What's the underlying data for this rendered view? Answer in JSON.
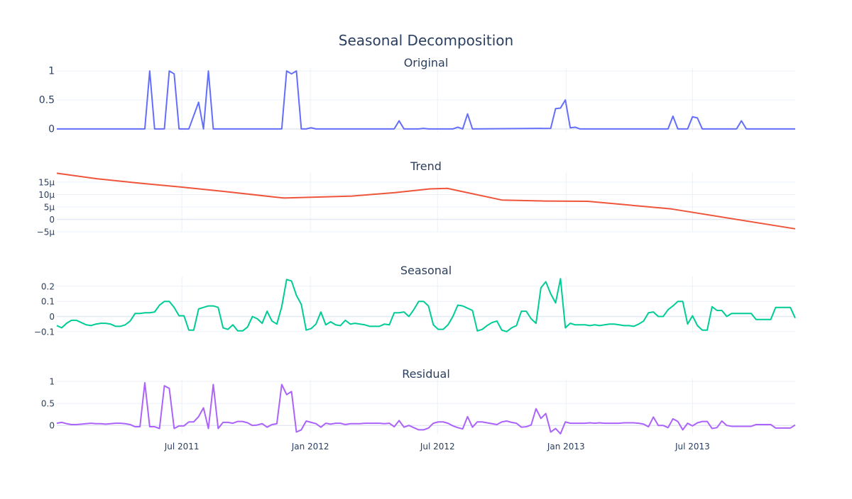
{
  "colors": {
    "original": "#636efa",
    "trend": "#EF553B",
    "seasonal": "#00cc96",
    "residual": "#ab63fa",
    "grid": "#ebf0f8",
    "zero": "#e4e8f3",
    "text": "#2a3f5f"
  },
  "chart_data": {
    "type": "line",
    "title": "Seasonal Decomposition",
    "x_axis": {
      "range": [
        "2011-01-03",
        "2013-11-25"
      ],
      "tick_values": [
        "2011-07-01",
        "2012-01-01",
        "2012-07-01",
        "2013-01-01",
        "2013-07-01"
      ],
      "tick_labels": [
        "Jul 2011",
        "Jan 2012",
        "Jul 2012",
        "Jan 2013",
        "Jul 2013"
      ]
    },
    "panels": [
      {
        "key": "original",
        "title": "Original",
        "ylim": [
          -0.05,
          1.05
        ],
        "ytick_values": [
          0,
          0.5,
          1
        ],
        "ytick_labels": [
          "0",
          "0.5",
          "1"
        ],
        "grid": true,
        "series": {
          "x": [
            "2011-01-03",
            "2011-05-09",
            "2011-05-16",
            "2011-05-23",
            "2011-06-06",
            "2011-06-13",
            "2011-06-20",
            "2011-06-27",
            "2011-07-11",
            "2011-07-25",
            "2011-08-01",
            "2011-08-08",
            "2011-08-15",
            "2011-08-22",
            "2011-11-21",
            "2011-11-28",
            "2011-12-05",
            "2011-12-12",
            "2011-12-19",
            "2011-12-26",
            "2012-01-02",
            "2012-01-09",
            "2012-01-16",
            "2012-04-30",
            "2012-05-07",
            "2012-05-14",
            "2012-06-04",
            "2012-06-11",
            "2012-06-18",
            "2012-07-23",
            "2012-07-30",
            "2012-08-06",
            "2012-08-13",
            "2012-08-20",
            "2012-12-10",
            "2012-12-17",
            "2012-12-24",
            "2012-12-31",
            "2013-01-07",
            "2013-01-14",
            "2013-01-21",
            "2013-05-27",
            "2013-06-03",
            "2013-06-10",
            "2013-06-24",
            "2013-07-01",
            "2013-07-08",
            "2013-07-15",
            "2013-09-02",
            "2013-09-09",
            "2013-09-16",
            "2013-11-25"
          ],
          "y": [
            0,
            0,
            1,
            0,
            0,
            1,
            0.95,
            0,
            0,
            0.46,
            0,
            1,
            0,
            0,
            0,
            1,
            0.95,
            1,
            0,
            0,
            0.02,
            0,
            0,
            0,
            0.14,
            0,
            0,
            0.01,
            0,
            0,
            0.03,
            0,
            0.26,
            0,
            0.01,
            0.35,
            0.36,
            0.5,
            0.02,
            0.03,
            0,
            0,
            0.22,
            0,
            0,
            0.21,
            0.19,
            0,
            0,
            0.14,
            0,
            0
          ]
        }
      },
      {
        "key": "trend",
        "title": "Trend",
        "ylim": [
          -5e-06,
          1.9e-05
        ],
        "ytick_values": [
          -5e-06,
          0,
          5e-06,
          1e-05,
          1.5e-05
        ],
        "ytick_labels": [
          "−5μ",
          "0",
          "5μ",
          "10μ",
          "15μ"
        ],
        "grid": true,
        "series": {
          "x": [
            "2011-01-03",
            "2011-03-01",
            "2011-05-01",
            "2011-07-01",
            "2011-09-01",
            "2011-11-24",
            "2012-03-01",
            "2012-05-01",
            "2012-06-20",
            "2012-07-15",
            "2012-10-01",
            "2012-12-01",
            "2013-02-01",
            "2013-06-01",
            "2013-11-25"
          ],
          "y": [
            1.86e-05,
            1.64e-05,
            1.46e-05,
            1.3e-05,
            1.12e-05,
            8.6e-06,
            9.4e-06,
            1.08e-05,
            1.23e-05,
            1.25e-05,
            7.8e-06,
            7.4e-06,
            7.3e-06,
            4.2e-06,
            -3.8e-06
          ]
        }
      },
      {
        "key": "seasonal",
        "title": "Seasonal",
        "ylim": [
          -0.11,
          0.265
        ],
        "ytick_values": [
          -0.1,
          0,
          0.1,
          0.2
        ],
        "ytick_labels": [
          "−0.1",
          "0",
          "0.1",
          "0.2"
        ],
        "grid": true,
        "series": {
          "x": [
            "2011-01-03",
            "2011-01-10",
            "2011-01-17",
            "2011-01-24",
            "2011-01-31",
            "2011-02-07",
            "2011-02-14",
            "2011-02-21",
            "2011-02-28",
            "2011-03-07",
            "2011-03-14",
            "2011-03-21",
            "2011-03-28",
            "2011-04-04",
            "2011-04-11",
            "2011-04-18",
            "2011-04-25",
            "2011-05-02",
            "2011-05-09",
            "2011-05-16",
            "2011-05-23",
            "2011-05-30",
            "2011-06-06",
            "2011-06-13",
            "2011-06-20",
            "2011-06-27",
            "2011-07-04",
            "2011-07-11",
            "2011-07-18",
            "2011-07-25",
            "2011-08-01",
            "2011-08-08",
            "2011-08-15",
            "2011-08-22",
            "2011-08-29",
            "2011-09-05",
            "2011-09-12",
            "2011-09-19",
            "2011-09-26",
            "2011-10-03",
            "2011-10-10",
            "2011-10-17",
            "2011-10-24",
            "2011-10-31",
            "2011-11-07",
            "2011-11-14",
            "2011-11-21",
            "2011-11-28",
            "2011-12-05",
            "2011-12-12",
            "2011-12-19",
            "2011-12-26",
            "2012-01-02",
            "2012-01-09",
            "2012-01-16",
            "2012-01-23",
            "2012-01-30",
            "2012-02-06",
            "2012-02-13",
            "2012-02-20",
            "2012-02-27",
            "2012-03-05",
            "2012-03-12",
            "2012-03-19",
            "2012-03-26",
            "2012-04-02",
            "2012-04-09",
            "2012-04-16",
            "2012-04-23",
            "2012-04-30",
            "2012-05-07",
            "2012-05-14",
            "2012-05-21",
            "2012-05-28",
            "2012-06-04",
            "2012-06-11",
            "2012-06-18",
            "2012-06-25",
            "2012-07-02",
            "2012-07-09",
            "2012-07-16",
            "2012-07-23",
            "2012-07-30",
            "2012-08-06",
            "2012-08-13",
            "2012-08-20",
            "2012-08-27",
            "2012-09-03",
            "2012-09-10",
            "2012-09-17",
            "2012-09-24",
            "2012-10-01",
            "2012-10-08",
            "2012-10-15",
            "2012-10-22",
            "2012-10-29",
            "2012-11-05",
            "2012-11-12",
            "2012-11-19",
            "2012-11-26",
            "2012-12-03",
            "2012-12-10",
            "2012-12-17",
            "2012-12-24",
            "2012-12-31",
            "2013-01-07",
            "2013-01-14",
            "2013-01-21",
            "2013-01-28",
            "2013-02-04",
            "2013-02-11",
            "2013-02-18",
            "2013-02-25",
            "2013-03-04",
            "2013-03-11",
            "2013-03-18",
            "2013-03-25",
            "2013-04-01",
            "2013-04-08",
            "2013-04-15",
            "2013-04-22",
            "2013-04-29",
            "2013-05-06",
            "2013-05-13",
            "2013-05-20",
            "2013-05-27",
            "2013-06-03",
            "2013-06-10",
            "2013-06-17",
            "2013-06-24",
            "2013-07-01",
            "2013-07-08",
            "2013-07-15",
            "2013-07-22",
            "2013-07-29",
            "2013-08-05",
            "2013-08-12",
            "2013-08-19",
            "2013-08-26",
            "2013-09-02",
            "2013-09-09",
            "2013-09-16",
            "2013-09-23",
            "2013-09-30",
            "2013-10-07",
            "2013-10-14",
            "2013-10-21",
            "2013-10-28",
            "2013-11-04",
            "2013-11-11",
            "2013-11-18",
            "2013-11-25"
          ],
          "y": [
            -0.06,
            -0.075,
            -0.045,
            -0.025,
            -0.025,
            -0.04,
            -0.055,
            -0.06,
            -0.05,
            -0.045,
            -0.045,
            -0.05,
            -0.065,
            -0.065,
            -0.055,
            -0.03,
            0.02,
            0.02,
            0.025,
            0.025,
            0.03,
            0.075,
            0.1,
            0.1,
            0.06,
            0.005,
            0.005,
            -0.09,
            -0.09,
            0.05,
            0.06,
            0.07,
            0.07,
            0.06,
            -0.075,
            -0.085,
            -0.055,
            -0.095,
            -0.095,
            -0.07,
            0,
            -0.015,
            -0.045,
            0.035,
            -0.03,
            -0.05,
            0.065,
            0.245,
            0.235,
            0.14,
            0.08,
            -0.09,
            -0.08,
            -0.05,
            0.03,
            -0.055,
            -0.035,
            -0.055,
            -0.06,
            -0.025,
            -0.05,
            -0.045,
            -0.05,
            -0.055,
            -0.065,
            -0.065,
            -0.065,
            -0.05,
            -0.055,
            0.025,
            0.025,
            0.03,
            0,
            0.045,
            0.1,
            0.1,
            0.07,
            -0.055,
            -0.085,
            -0.085,
            -0.055,
            0,
            0.075,
            0.07,
            0.055,
            0.04,
            -0.095,
            -0.085,
            -0.06,
            -0.04,
            -0.03,
            -0.09,
            -0.1,
            -0.075,
            -0.06,
            0.035,
            0.035,
            -0.015,
            -0.045,
            0.19,
            0.23,
            0.15,
            0.09,
            0.25,
            -0.075,
            -0.045,
            -0.055,
            -0.055,
            -0.055,
            -0.06,
            -0.055,
            -0.06,
            -0.055,
            -0.05,
            -0.05,
            -0.055,
            -0.06,
            -0.06,
            -0.065,
            -0.05,
            -0.03,
            0.025,
            0.03,
            0,
            0,
            0.045,
            0.07,
            0.1,
            0.1,
            -0.05,
            0.005,
            -0.06,
            -0.09,
            -0.09,
            0.065,
            0.04,
            0.04,
            0,
            0.02,
            0.02,
            0.02,
            0.02,
            0.02,
            -0.02,
            -0.02,
            -0.02,
            -0.02,
            0.06,
            0.06,
            0.06,
            0.06,
            -0.01
          ]
        }
      },
      {
        "key": "residual",
        "title": "Residual",
        "ylim": [
          -0.19,
          1.05
        ],
        "ytick_values": [
          0,
          0.5,
          1
        ],
        "ytick_labels": [
          "0",
          "0.5",
          "1"
        ],
        "grid": true,
        "series": {
          "x": [
            "2011-01-03",
            "2011-01-10",
            "2011-01-17",
            "2011-01-24",
            "2011-01-31",
            "2011-02-07",
            "2011-02-14",
            "2011-02-21",
            "2011-02-28",
            "2011-03-07",
            "2011-03-14",
            "2011-03-21",
            "2011-03-28",
            "2011-04-04",
            "2011-04-11",
            "2011-04-18",
            "2011-04-25",
            "2011-05-02",
            "2011-05-09",
            "2011-05-16",
            "2011-05-23",
            "2011-05-30",
            "2011-06-06",
            "2011-06-13",
            "2011-06-20",
            "2011-06-27",
            "2011-07-04",
            "2011-07-11",
            "2011-07-18",
            "2011-07-25",
            "2011-08-01",
            "2011-08-08",
            "2011-08-15",
            "2011-08-22",
            "2011-08-29",
            "2011-09-05",
            "2011-09-12",
            "2011-09-19",
            "2011-09-26",
            "2011-10-03",
            "2011-10-10",
            "2011-10-17",
            "2011-10-24",
            "2011-10-31",
            "2011-11-07",
            "2011-11-14",
            "2011-11-21",
            "2011-11-28",
            "2011-12-05",
            "2011-12-12",
            "2011-12-19",
            "2011-12-26",
            "2012-01-02",
            "2012-01-09",
            "2012-01-16",
            "2012-01-23",
            "2012-01-30",
            "2012-02-06",
            "2012-02-13",
            "2012-02-20",
            "2012-02-27",
            "2012-03-05",
            "2012-03-12",
            "2012-03-19",
            "2012-03-26",
            "2012-04-02",
            "2012-04-09",
            "2012-04-16",
            "2012-04-23",
            "2012-04-30",
            "2012-05-07",
            "2012-05-14",
            "2012-05-21",
            "2012-05-28",
            "2012-06-04",
            "2012-06-11",
            "2012-06-18",
            "2012-06-25",
            "2012-07-02",
            "2012-07-09",
            "2012-07-16",
            "2012-07-23",
            "2012-07-30",
            "2012-08-06",
            "2012-08-13",
            "2012-08-20",
            "2012-08-27",
            "2012-09-03",
            "2012-09-10",
            "2012-09-17",
            "2012-09-24",
            "2012-10-01",
            "2012-10-08",
            "2012-10-15",
            "2012-10-22",
            "2012-10-29",
            "2012-11-05",
            "2012-11-12",
            "2012-11-19",
            "2012-11-26",
            "2012-12-03",
            "2012-12-10",
            "2012-12-17",
            "2012-12-24",
            "2012-12-31",
            "2013-01-07",
            "2013-01-14",
            "2013-01-21",
            "2013-01-28",
            "2013-02-04",
            "2013-02-11",
            "2013-02-18",
            "2013-02-25",
            "2013-03-04",
            "2013-03-11",
            "2013-03-18",
            "2013-03-25",
            "2013-04-01",
            "2013-04-08",
            "2013-04-15",
            "2013-04-22",
            "2013-04-29",
            "2013-05-06",
            "2013-05-13",
            "2013-05-20",
            "2013-05-27",
            "2013-06-03",
            "2013-06-10",
            "2013-06-17",
            "2013-06-24",
            "2013-07-01",
            "2013-07-08",
            "2013-07-15",
            "2013-07-22",
            "2013-07-29",
            "2013-08-05",
            "2013-08-12",
            "2013-08-19",
            "2013-08-26",
            "2013-09-02",
            "2013-09-09",
            "2013-09-16",
            "2013-09-23",
            "2013-09-30",
            "2013-10-07",
            "2013-10-14",
            "2013-10-21",
            "2013-10-28",
            "2013-11-04",
            "2013-11-11",
            "2013-11-18",
            "2013-11-25"
          ],
          "y": [
            0.05,
            0.07,
            0.04,
            0.02,
            0.02,
            0.03,
            0.04,
            0.05,
            0.04,
            0.04,
            0.03,
            0.04,
            0.05,
            0.05,
            0.04,
            0.02,
            -0.03,
            -0.03,
            0.97,
            -0.03,
            -0.03,
            -0.07,
            0.9,
            0.84,
            -0.07,
            -0.01,
            -0.01,
            0.08,
            0.08,
            0.2,
            0.4,
            -0.07,
            0.93,
            -0.07,
            0.07,
            0.07,
            0.05,
            0.09,
            0.09,
            0.06,
            0,
            0.01,
            0.04,
            -0.04,
            0.02,
            0.04,
            0.93,
            0.7,
            0.77,
            -0.15,
            -0.1,
            0.1,
            0.07,
            0.04,
            -0.04,
            0.05,
            0.03,
            0.05,
            0.05,
            0.02,
            0.04,
            0.04,
            0.04,
            0.05,
            0.05,
            0.05,
            0.05,
            0.04,
            0.05,
            -0.03,
            0.11,
            -0.04,
            0,
            -0.05,
            -0.1,
            -0.1,
            -0.06,
            0.05,
            0.08,
            0.08,
            0.05,
            -0.01,
            -0.05,
            -0.08,
            0.2,
            -0.04,
            0.08,
            0.08,
            0.06,
            0.04,
            0.02,
            0.08,
            0.1,
            0.07,
            0.05,
            -0.04,
            -0.03,
            0.01,
            0.38,
            0.16,
            0.27,
            -0.15,
            -0.07,
            -0.19,
            0.08,
            0.05,
            0.05,
            0.05,
            0.05,
            0.06,
            0.05,
            0.06,
            0.05,
            0.05,
            0.05,
            0.05,
            0.06,
            0.06,
            0.06,
            0.05,
            0.03,
            -0.03,
            0.19,
            0,
            0,
            -0.05,
            0.15,
            0.09,
            -0.1,
            0.05,
            -0.01,
            0.06,
            0.09,
            0.09,
            -0.07,
            -0.05,
            0.1,
            0,
            -0.02,
            -0.02,
            -0.02,
            -0.02,
            -0.02,
            0.02,
            0.02,
            0.02,
            0.02,
            -0.06,
            -0.06,
            -0.06,
            -0.06,
            0.01
          ]
        }
      }
    ]
  }
}
